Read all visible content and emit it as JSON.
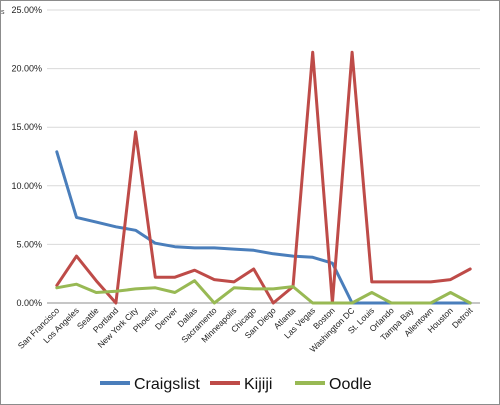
{
  "corner_marker": "s",
  "chart_data": {
    "type": "line",
    "categories": [
      "San Francisco",
      "Los Angeles",
      "Seattle",
      "Portland",
      "New York City",
      "Phoenix",
      "Denver",
      "Dallas",
      "Sacramento",
      "Minneapolis",
      "Chicago",
      "San Diego",
      "Atlanta",
      "Las Vegas",
      "Boston",
      "Washington DC",
      "St. Louis",
      "Orlando",
      "Tampa Bay",
      "Allentown",
      "Houston",
      "Detroit"
    ],
    "yticks": [
      "0.00%",
      "5.00%",
      "10.00%",
      "15.00%",
      "20.00%",
      "25.00%"
    ],
    "ylim": [
      0,
      25
    ],
    "grid": true,
    "legend_position": "bottom",
    "series": [
      {
        "name": "Craigslist",
        "color": "#4a7ebb",
        "values": [
          12.9,
          7.3,
          6.9,
          6.5,
          6.2,
          5.1,
          4.8,
          4.7,
          4.7,
          4.6,
          4.5,
          4.2,
          4.0,
          3.9,
          3.4,
          0,
          0,
          0,
          0,
          0,
          0,
          0
        ]
      },
      {
        "name": "Kijiji",
        "color": "#be4b48",
        "values": [
          1.5,
          4.0,
          1.9,
          0,
          14.6,
          2.2,
          2.2,
          2.8,
          2.0,
          1.8,
          2.9,
          0,
          1.4,
          21.4,
          0,
          21.4,
          1.8,
          1.8,
          1.8,
          1.8,
          2.0,
          2.9
        ]
      },
      {
        "name": "Oodle",
        "color": "#98b954",
        "values": [
          1.3,
          1.6,
          0.9,
          1.0,
          1.2,
          1.3,
          0.9,
          1.9,
          0,
          1.3,
          1.2,
          1.2,
          1.4,
          0,
          0,
          0,
          0.9,
          0,
          0,
          0,
          0.9,
          0
        ]
      }
    ]
  }
}
